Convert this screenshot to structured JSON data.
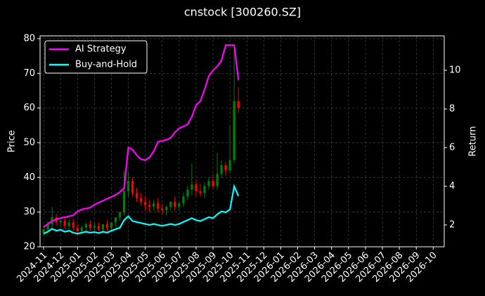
{
  "chart_data": {
    "type": "candlestick",
    "title": "cnstock [300260.SZ]",
    "ylabel": "Price",
    "y2label": "Return",
    "xlim": [
      -0.21,
      23.65
    ],
    "ylim": [
      20,
      80.8
    ],
    "y2lim": [
      0.87,
      11.78
    ],
    "xticks": [
      {
        "value": 0,
        "label": "2024-11"
      },
      {
        "value": 1,
        "label": "2024-12"
      },
      {
        "value": 2,
        "label": "2025-01"
      },
      {
        "value": 3,
        "label": "2025-02"
      },
      {
        "value": 4,
        "label": "2025-03"
      },
      {
        "value": 5,
        "label": "2025-04"
      },
      {
        "value": 6,
        "label": "2025-05"
      },
      {
        "value": 7,
        "label": "2025-06"
      },
      {
        "value": 8,
        "label": "2025-07"
      },
      {
        "value": 9,
        "label": "2025-08"
      },
      {
        "value": 10,
        "label": "2025-09"
      },
      {
        "value": 11,
        "label": "2025-10"
      },
      {
        "value": 12,
        "label": "2025-11"
      },
      {
        "value": 13,
        "label": "2025-12"
      },
      {
        "value": 14,
        "label": "2026-01"
      },
      {
        "value": 15,
        "label": "2026-02"
      },
      {
        "value": 16,
        "label": "2026-03"
      },
      {
        "value": 17,
        "label": "2026-04"
      },
      {
        "value": 18,
        "label": "2026-05"
      },
      {
        "value": 19,
        "label": "2026-06"
      },
      {
        "value": 20,
        "label": "2026-07"
      },
      {
        "value": 21,
        "label": "2026-08"
      },
      {
        "value": 22,
        "label": "2026-09"
      },
      {
        "value": 23,
        "label": "2026-10"
      }
    ],
    "yticks": [
      20,
      30,
      40,
      50,
      60,
      70,
      80
    ],
    "y2ticks": [
      2,
      4,
      6,
      8,
      10
    ],
    "grid": true,
    "legend": "upper-left",
    "up_color": "#008000",
    "down_color": "#ff0000",
    "x": [
      0,
      0.25,
      0.5,
      0.75,
      1,
      1.25,
      1.5,
      1.75,
      2,
      2.25,
      2.5,
      2.75,
      3,
      3.25,
      3.5,
      3.75,
      4,
      4.25,
      4.5,
      4.75,
      5,
      5.25,
      5.5,
      5.75,
      6,
      6.25,
      6.5,
      6.75,
      7,
      7.25,
      7.5,
      7.75,
      8,
      8.25,
      8.5,
      8.75,
      9,
      9.25,
      9.5,
      9.75,
      10,
      10.25,
      10.5,
      10.75,
      11,
      11.25,
      11.5
    ],
    "open": [
      24.0,
      25.0,
      26.5,
      28.5,
      27.0,
      27.5,
      26.0,
      27.0,
      25.5,
      24.5,
      25.5,
      26.5,
      25.5,
      26.0,
      25.0,
      26.5,
      25.5,
      27.0,
      28.5,
      30.0,
      36.0,
      39.0,
      35.5,
      34.0,
      33.0,
      32.0,
      31.5,
      32.5,
      31.0,
      30.5,
      31.5,
      33.0,
      31.5,
      32.5,
      34.5,
      36.5,
      38.0,
      36.0,
      35.5,
      37.5,
      39.0,
      37.5,
      41.0,
      43.5,
      42.0,
      45.0,
      62.0
    ],
    "high": [
      25.8,
      27.5,
      31.5,
      29.5,
      28.5,
      28.5,
      28.0,
      28.0,
      26.5,
      26.0,
      27.0,
      27.5,
      27.0,
      27.0,
      26.5,
      27.5,
      27.0,
      28.5,
      30.0,
      42.0,
      41.5,
      40.0,
      37.0,
      35.5,
      34.5,
      33.5,
      33.5,
      34.0,
      32.5,
      32.0,
      33.0,
      34.5,
      33.0,
      35.5,
      37.5,
      44.0,
      39.5,
      38.0,
      38.5,
      40.0,
      41.0,
      47.0,
      45.0,
      44.5,
      55.0,
      78.0,
      66.0
    ],
    "low": [
      23.0,
      24.0,
      25.5,
      26.0,
      26.0,
      25.0,
      25.0,
      24.5,
      24.0,
      23.5,
      24.5,
      24.5,
      24.5,
      24.5,
      24.0,
      24.5,
      24.5,
      26.0,
      27.5,
      29.0,
      34.5,
      34.5,
      33.0,
      32.0,
      30.5,
      30.0,
      30.5,
      30.0,
      29.5,
      29.0,
      30.5,
      30.5,
      30.5,
      31.5,
      33.5,
      35.0,
      34.5,
      34.5,
      34.0,
      36.5,
      36.5,
      36.5,
      40.0,
      40.5,
      41.0,
      44.0,
      58.5
    ],
    "close": [
      25.0,
      26.5,
      28.5,
      27.0,
      27.5,
      26.0,
      27.0,
      25.5,
      24.5,
      25.5,
      26.5,
      25.5,
      26.0,
      25.0,
      26.5,
      25.5,
      27.0,
      28.5,
      30.0,
      36.0,
      39.0,
      35.5,
      34.0,
      33.0,
      32.0,
      31.5,
      32.5,
      31.0,
      30.5,
      31.5,
      33.0,
      31.5,
      32.5,
      34.5,
      36.5,
      38.0,
      36.0,
      35.5,
      37.5,
      39.0,
      37.5,
      41.0,
      43.5,
      42.0,
      45.0,
      62.0,
      60.0
    ],
    "series": [
      {
        "name": "AI Strategy",
        "color": "#ff00ff",
        "axis": "y2",
        "values": [
          1.9,
          2.05,
          2.2,
          2.3,
          2.35,
          2.4,
          2.45,
          2.5,
          2.7,
          2.8,
          2.85,
          2.9,
          3.05,
          3.15,
          3.25,
          3.35,
          3.45,
          3.55,
          3.7,
          3.9,
          6.0,
          5.9,
          5.6,
          5.4,
          5.35,
          5.5,
          5.8,
          6.3,
          6.35,
          6.4,
          6.5,
          6.8,
          7.0,
          7.1,
          7.2,
          7.6,
          8.2,
          8.4,
          9.0,
          9.7,
          10.0,
          10.2,
          10.5,
          11.3,
          11.3,
          11.3,
          9.5
        ]
      },
      {
        "name": "Buy-and-Hold",
        "color": "#00ffff",
        "axis": "y2",
        "values": [
          1.55,
          1.65,
          1.8,
          1.7,
          1.75,
          1.65,
          1.7,
          1.6,
          1.55,
          1.6,
          1.65,
          1.6,
          1.63,
          1.58,
          1.65,
          1.6,
          1.7,
          1.78,
          1.85,
          2.25,
          2.45,
          2.2,
          2.15,
          2.1,
          2.05,
          2.0,
          2.05,
          2.0,
          1.95,
          2.0,
          2.05,
          2.0,
          2.05,
          2.15,
          2.25,
          2.35,
          2.25,
          2.2,
          2.3,
          2.4,
          2.35,
          2.55,
          2.7,
          2.65,
          2.8,
          4.0,
          3.5
        ]
      }
    ]
  }
}
